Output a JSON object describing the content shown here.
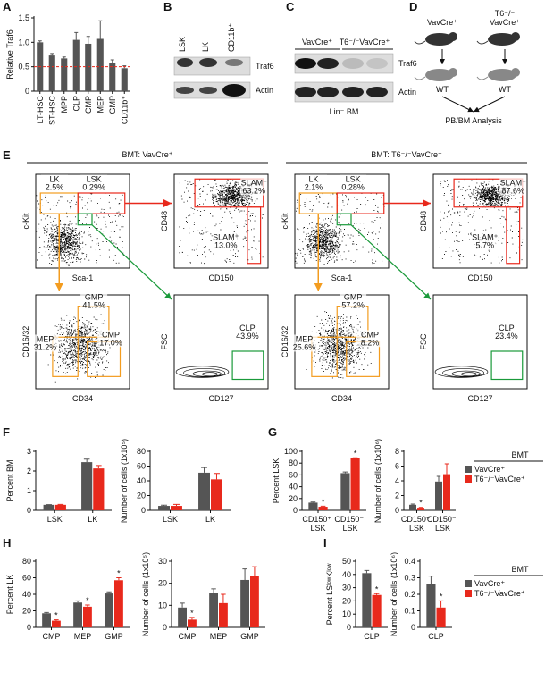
{
  "figure": {
    "panel_letters": [
      "A",
      "B",
      "C",
      "D",
      "E",
      "F",
      "G",
      "H",
      "I"
    ],
    "B": {
      "lanes": [
        "LSK",
        "LK",
        "CD11b⁺"
      ],
      "bands": [
        "Traf6",
        "Actin"
      ]
    },
    "C": {
      "groups": [
        "VavCre⁺",
        "T6⁻/⁻VavCre⁺"
      ],
      "bands": [
        "Traf6",
        "Actin"
      ],
      "footer": "Lin⁻ BM"
    },
    "D": {
      "groups": [
        [
          "VavCre⁺"
        ],
        [
          "T6⁻/⁻",
          "VavCre⁺"
        ]
      ],
      "recipient": "WT",
      "readout": "PB/BM Analysis"
    },
    "E": {
      "sides": [
        {
          "header": "BMT: VavCre⁺",
          "plots": [
            {
              "x_label": "Sca-1",
              "y_label": "c-Kit",
              "gates": [
                {
                  "name": "LK",
                  "pct": "2.5%"
                },
                {
                  "name": "LSK",
                  "pct": "0.29%"
                }
              ]
            },
            {
              "x_label": "CD150",
              "y_label": "CD48",
              "gates": [
                {
                  "name": "SLAM⁻",
                  "pct": "63.2%"
                },
                {
                  "name": "SLAM⁺",
                  "pct": "13.0%"
                }
              ]
            },
            {
              "x_label": "CD34",
              "y_label": "CD16/32",
              "gates": [
                {
                  "name": "GMP",
                  "pct": "41.5%"
                },
                {
                  "name": "MEP",
                  "pct": "31.2%"
                },
                {
                  "name": "CMP",
                  "pct": "17.0%"
                }
              ]
            },
            {
              "x_label": "CD127",
              "y_label": "FSC",
              "gates": [
                {
                  "name": "CLP",
                  "pct": "43.9%"
                }
              ]
            }
          ]
        },
        {
          "header": "BMT: T6⁻/⁻VavCre⁺",
          "plots": [
            {
              "x_label": "Sca-1",
              "y_label": "c-Kit",
              "gates": [
                {
                  "name": "LK",
                  "pct": "2.1%"
                },
                {
                  "name": "LSK",
                  "pct": "0.28%"
                }
              ]
            },
            {
              "x_label": "CD150",
              "y_label": "CD48",
              "gates": [
                {
                  "name": "SLAM⁻",
                  "pct": "87.6%"
                },
                {
                  "name": "SLAM⁺",
                  "pct": "5.7%"
                }
              ]
            },
            {
              "x_label": "CD34",
              "y_label": "CD16/32",
              "gates": [
                {
                  "name": "GMP",
                  "pct": "57.2%"
                },
                {
                  "name": "MEP",
                  "pct": "25.6%"
                },
                {
                  "name": "CMP",
                  "pct": "8.2%"
                }
              ]
            },
            {
              "x_label": "CD127",
              "y_label": "FSC",
              "gates": [
                {
                  "name": "CLP",
                  "pct": "23.4%"
                }
              ]
            }
          ]
        }
      ]
    }
  },
  "chart_data": [
    {
      "type": "bar",
      "y_label": "Relative Traf6",
      "categories": [
        "LT-HSC",
        "ST-HSC",
        "MPP",
        "CLP",
        "CMP",
        "MEP",
        "GMP",
        "CD11b⁺"
      ],
      "values": [
        1.0,
        0.73,
        0.67,
        1.05,
        0.97,
        1.07,
        0.57,
        0.47
      ],
      "errors": [
        0.03,
        0.04,
        0.03,
        0.15,
        0.15,
        0.37,
        0.07,
        0.05
      ],
      "color": "#555555",
      "ref_line": 0.5,
      "ref_color": "#e8291c",
      "ylim": [
        0,
        1.5
      ],
      "yticks": [
        0,
        0.5,
        {
          "value": 1,
          "label": "1.0"
        },
        1.5
      ]
    },
    {
      "type": "bar",
      "y_label": "Percent BM",
      "categories": [
        "LSK",
        "LK"
      ],
      "ylim": [
        0,
        3
      ],
      "yticks": [
        0,
        1,
        2,
        3
      ],
      "series": [
        {
          "name": "VavCre⁺",
          "color": "#555555",
          "values": [
            0.28,
            2.45
          ],
          "errors": [
            0.01,
            0.15
          ]
        },
        {
          "name": "T6⁻/⁻VavCre⁺",
          "color": "#e8291c",
          "values": [
            0.28,
            2.13
          ],
          "errors": [
            0.02,
            0.15
          ]
        }
      ]
    },
    {
      "type": "bar",
      "y_label": "Number of cells (1x10⁵)",
      "categories": [
        "LSK",
        "LK"
      ],
      "ylim": [
        0,
        80
      ],
      "yticks": [
        0,
        20,
        40,
        60,
        80
      ],
      "series": [
        {
          "name": "VavCre⁺",
          "color": "#555555",
          "values": [
            6,
            51
          ],
          "errors": [
            1,
            7
          ]
        },
        {
          "name": "T6⁻/⁻VavCre⁺",
          "color": "#e8291c",
          "values": [
            6,
            42
          ],
          "errors": [
            2,
            8
          ]
        }
      ]
    },
    {
      "type": "bar",
      "y_label": "Percent LSK",
      "categories": [
        "CD150⁺ LSK",
        "CD150⁻ LSK"
      ],
      "ylim": [
        0,
        100
      ],
      "yticks": [
        0,
        20,
        40,
        60,
        80,
        100
      ],
      "series": [
        {
          "name": "VavCre⁺",
          "color": "#555555",
          "values": [
            13,
            63
          ],
          "errors": [
            1,
            2
          ]
        },
        {
          "name": "T6⁻/⁻VavCre⁺",
          "color": "#e8291c",
          "values": [
            6,
            88
          ],
          "errors": [
            1,
            1
          ]
        }
      ],
      "annotations": [
        {
          "series": 1,
          "index": 0,
          "text": "*"
        },
        {
          "series": 1,
          "index": 1,
          "text": "*"
        }
      ]
    },
    {
      "type": "bar",
      "y_label": "Number of cells (1x10⁶)",
      "categories": [
        "CD150⁺ LSK",
        "CD150⁻ LSK"
      ],
      "ylim": [
        0,
        8
      ],
      "yticks": [
        0,
        2,
        4,
        6,
        8
      ],
      "series": [
        {
          "name": "VavCre⁺",
          "color": "#555555",
          "values": [
            0.75,
            3.9
          ],
          "errors": [
            0.1,
            0.7
          ]
        },
        {
          "name": "T6⁻/⁻VavCre⁺",
          "color": "#e8291c",
          "values": [
            0.35,
            4.9
          ],
          "errors": [
            0.05,
            1.4
          ]
        }
      ],
      "annotations": [
        {
          "series": 1,
          "index": 0,
          "text": "*"
        }
      ],
      "legend_title": "BMT"
    },
    {
      "type": "bar",
      "y_label": "Percent LK",
      "categories": [
        "CMP",
        "MEP",
        "GMP"
      ],
      "ylim": [
        0,
        80
      ],
      "yticks": [
        0,
        20,
        40,
        60,
        80
      ],
      "series": [
        {
          "name": "VavCre⁺",
          "color": "#555555",
          "values": [
            17,
            30,
            41
          ],
          "errors": [
            1,
            2,
            2
          ]
        },
        {
          "name": "T6⁻/⁻VavCre⁺",
          "color": "#e8291c",
          "values": [
            8,
            25,
            57
          ],
          "errors": [
            1,
            2,
            3
          ]
        }
      ],
      "annotations": [
        {
          "series": 1,
          "index": 0,
          "text": "*"
        },
        {
          "series": 1,
          "index": 1,
          "text": "*"
        },
        {
          "series": 1,
          "index": 2,
          "text": "*"
        }
      ]
    },
    {
      "type": "bar",
      "y_label": "Number of cells (1x10⁵)",
      "categories": [
        "CMP",
        "MEP",
        "GMP"
      ],
      "ylim": [
        0,
        30
      ],
      "yticks": [
        0,
        10,
        20,
        30
      ],
      "series": [
        {
          "name": "VavCre⁺",
          "color": "#555555",
          "values": [
            9,
            15.5,
            21.5
          ],
          "errors": [
            2,
            2,
            5
          ]
        },
        {
          "name": "T6⁻/⁻VavCre⁺",
          "color": "#e8291c",
          "values": [
            3.5,
            11,
            23.5
          ],
          "errors": [
            1,
            4,
            4
          ]
        }
      ],
      "annotations": [
        {
          "series": 1,
          "index": 0,
          "text": "*"
        }
      ]
    },
    {
      "type": "bar",
      "y_label": "Percent LSˡᵒʷKˡᵒʷ",
      "categories": [
        "CLP"
      ],
      "ylim": [
        0,
        50
      ],
      "yticks": [
        0,
        10,
        20,
        30,
        40,
        50
      ],
      "series": [
        {
          "name": "VavCre⁺",
          "color": "#555555",
          "values": [
            41
          ],
          "errors": [
            2
          ]
        },
        {
          "name": "T6⁻/⁻VavCre⁺",
          "color": "#e8291c",
          "values": [
            24.5
          ],
          "errors": [
            1
          ]
        }
      ],
      "annotations": [
        {
          "series": 1,
          "index": 0,
          "text": "*"
        }
      ]
    },
    {
      "type": "bar",
      "y_label": "Number of cells (1x10⁶)",
      "categories": [
        "CLP"
      ],
      "ylim": [
        0,
        0.4
      ],
      "yticks": [
        0,
        0.1,
        0.2,
        0.3,
        0.4
      ],
      "series": [
        {
          "name": "VavCre⁺",
          "color": "#555555",
          "values": [
            0.26
          ],
          "errors": [
            0.05
          ]
        },
        {
          "name": "T6⁻/⁻VavCre⁺",
          "color": "#e8291c",
          "values": [
            0.12
          ],
          "errors": [
            0.04
          ]
        }
      ],
      "annotations": [
        {
          "series": 1,
          "index": 0,
          "text": "*"
        }
      ],
      "legend_title": "BMT"
    }
  ]
}
